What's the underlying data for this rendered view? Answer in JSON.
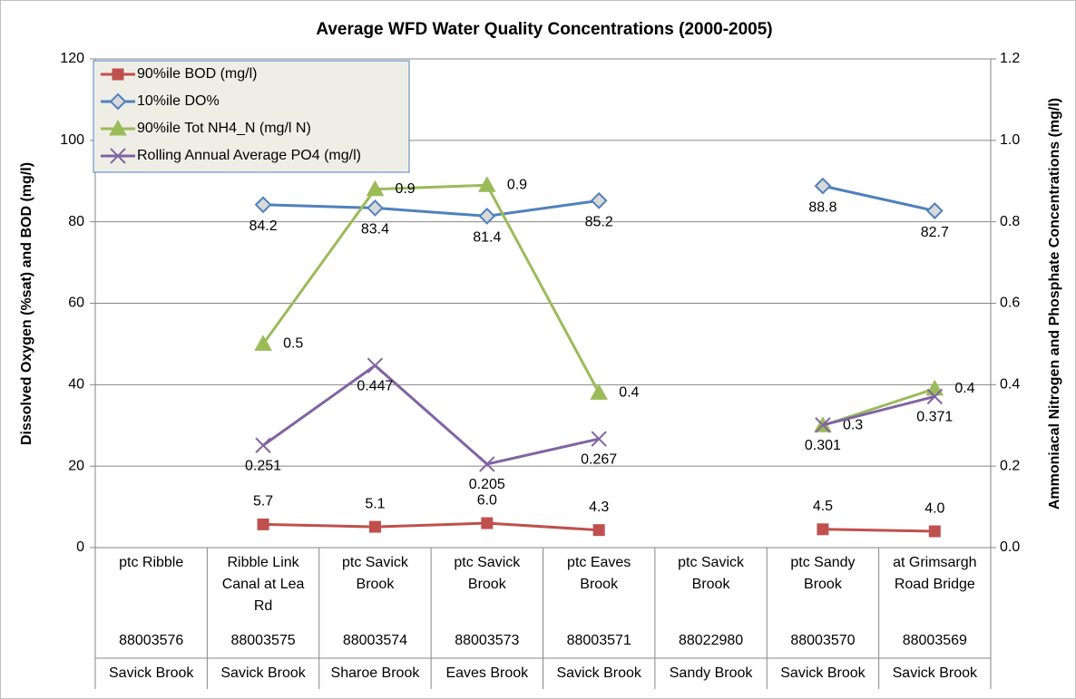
{
  "chart_data": {
    "type": "line",
    "title": "Average WFD Water Quality Concentrations (2000-2005)",
    "y_label": "Dissolved Oxygen (%sat) and BOD (mg/l)",
    "y2_label": "Ammoniacal Nitrogen and Phosphate Concentrations (mg/l)",
    "categories": [
      [
        "ptc Ribble",
        "88003576",
        "Savick Brook"
      ],
      [
        "Ribble Link Canal at Lea Rd",
        "88003575",
        "Savick Brook"
      ],
      [
        "ptc Savick Brook",
        "88003574",
        "Sharoe Brook"
      ],
      [
        "ptc Savick Brook",
        "88003573",
        "Eaves Brook"
      ],
      [
        "ptc Eaves Brook",
        "88003571",
        "Savick Brook"
      ],
      [
        "ptc Savick Brook",
        "88022980",
        "Sandy Brook"
      ],
      [
        "ptc Sandy Brook",
        "88003570",
        "Savick Brook"
      ],
      [
        "at Grimsargh Road Bridge",
        "88003569",
        "Savick Brook"
      ]
    ],
    "series": [
      {
        "name": "90%ile BOD (mg/l)",
        "color": "#c0504d",
        "label_color": "#c00000",
        "marker": "square",
        "values": [
          null,
          5.7,
          5.1,
          6.0,
          4.3,
          null,
          4.5,
          4.0
        ],
        "value_labels": [
          null,
          "5.7",
          "5.1",
          "6.0",
          "4.3",
          null,
          "4.5",
          "4.0"
        ]
      },
      {
        "name": "10%ile DO%",
        "color": "#4f81bd",
        "label_color": "#1f77c4",
        "marker": "diamond",
        "values": [
          null,
          84.2,
          83.4,
          81.4,
          85.2,
          null,
          88.8,
          82.7
        ]
      },
      {
        "name": "90%ile Tot NH4_N (mg/l N)",
        "color": "#9bbb59",
        "label_color": "#000000",
        "marker": "triangle",
        "axis": "y2",
        "values": [
          null,
          0.5,
          0.88,
          0.89,
          0.38,
          null,
          0.3,
          0.39
        ],
        "value_labels": [
          null,
          "0.5",
          "0.9",
          "0.9",
          "0.4",
          null,
          "0.3",
          "0.4"
        ]
      },
      {
        "name": "Rolling Annual Average PO4 (mg/l)",
        "color": "#8064a2",
        "label_color": "#7030a0",
        "marker": "x",
        "axis": "y2",
        "values": [
          null,
          0.251,
          0.447,
          0.205,
          0.267,
          null,
          0.301,
          0.371
        ]
      }
    ],
    "ylim": [
      0,
      120
    ],
    "yticks": [
      0,
      20,
      40,
      60,
      80,
      100,
      120
    ],
    "y2lim": [
      0,
      1.2
    ],
    "y2ticks": [
      {
        "value": 0,
        "label": "0.0"
      },
      0.2,
      0.4,
      0.6,
      0.8,
      {
        "value": 1,
        "label": "1.0"
      },
      1.2
    ],
    "grid": true,
    "legend": "top-left"
  }
}
